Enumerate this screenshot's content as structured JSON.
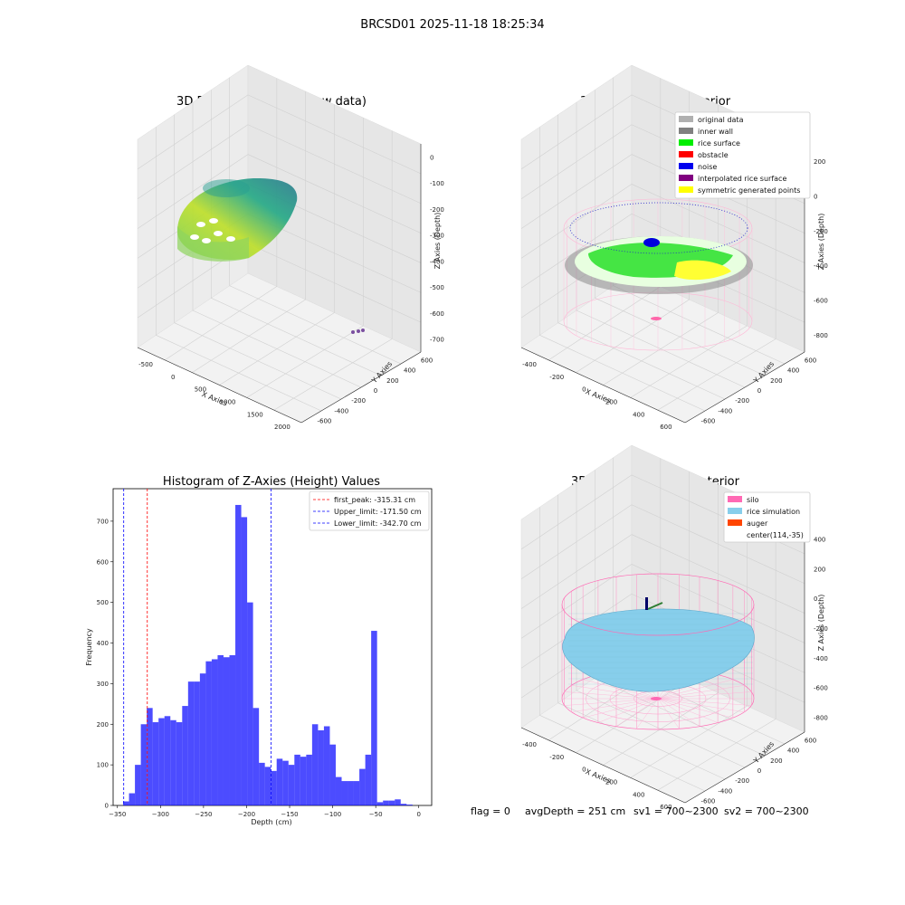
{
  "figure": {
    "suptitle": "BRCSD01 2025-11-18 18:25:34",
    "footer": {
      "flag": "flag = 0",
      "avg_depth": "avgDepth = 251 cm",
      "sv1": "sv1 = 700~2300",
      "sv2": "sv2 = 700~2300"
    }
  },
  "chart_data": [
    {
      "type": "scatter3d",
      "title": "3D Plot of Silo Interior(row data)",
      "xlabel": "X Axies",
      "ylabel": "Y Axies",
      "zlabel": "Z Axies (Depth)",
      "x_ticks": [
        "-500",
        "0",
        "500",
        "1000",
        "1500",
        "2000"
      ],
      "y_ticks": [
        "600",
        "400",
        "200",
        "0",
        "-200",
        "-400",
        "-600"
      ],
      "z_ticks": [
        "0",
        "-100",
        "-200",
        "-300",
        "-400",
        "-500",
        "-600",
        "-700"
      ],
      "xlim": [
        -650,
        2050
      ],
      "ylim": [
        -650,
        650
      ],
      "zlim": [
        -720,
        0
      ],
      "colormap": "viridis",
      "grid": true
    },
    {
      "type": "scatter3d",
      "title": "3D classify of Silo Interior",
      "xlabel": "X Axies",
      "ylabel": "Y Axies",
      "zlabel": "Z Axies (Depth)",
      "x_ticks": [
        "-400",
        "-200",
        "0",
        "200",
        "400",
        "600"
      ],
      "y_ticks": [
        "600",
        "400",
        "200",
        "0",
        "-200",
        "-400",
        "-600"
      ],
      "z_ticks": [
        "200",
        "0",
        "-200",
        "-400",
        "-600",
        "-800"
      ],
      "legend": [
        {
          "label": "original data",
          "color": "#b0b0b0"
        },
        {
          "label": "inner wall",
          "color": "#808080"
        },
        {
          "label": "rice surface",
          "color": "#00ee00"
        },
        {
          "label": "obstacle",
          "color": "#ff0000"
        },
        {
          "label": "noise",
          "color": "#0000ee"
        },
        {
          "label": "interpolated rice surface",
          "color": "#800080"
        },
        {
          "label": "symmetric generated points",
          "color": "#ffff00"
        }
      ],
      "legend_position": "top-right",
      "grid": true
    },
    {
      "type": "bar",
      "title": "Histogram of Z-Axies (Height) Values",
      "xlabel": "Depth (cm)",
      "ylabel": "Frequency",
      "xlim": [
        -355,
        15
      ],
      "ylim": [
        0,
        780
      ],
      "x_ticks": [
        -350,
        -300,
        -250,
        -200,
        -150,
        -100,
        -50,
        0
      ],
      "y_ticks": [
        0,
        100,
        200,
        300,
        400,
        500,
        600,
        700
      ],
      "bin_width": 6.86,
      "bin_start": -343.4,
      "values": [
        10,
        30,
        100,
        200,
        240,
        205,
        215,
        220,
        210,
        205,
        245,
        305,
        305,
        325,
        355,
        360,
        370,
        365,
        370,
        740,
        710,
        500,
        240,
        105,
        95,
        85,
        115,
        110,
        100,
        125,
        120,
        125,
        200,
        185,
        195,
        150,
        70,
        60,
        60,
        60,
        90,
        125,
        430,
        8,
        12,
        12,
        15,
        4,
        2
      ],
      "bar_color": "#0000ff",
      "vlines": [
        {
          "label": "first_peak: -315.31 cm",
          "x": -315.31,
          "color": "#ff0000"
        },
        {
          "label": "Upper_limit: -171.50 cm",
          "x": -171.5,
          "color": "#0000ff"
        },
        {
          "label": "Lower_limit: -342.70 cm",
          "x": -342.7,
          "color": "#0000ff"
        }
      ],
      "legend_position": "top-right",
      "grid": false
    },
    {
      "type": "surface3d",
      "title": "3D simulation of Silo Interior",
      "xlabel": "X Axies",
      "ylabel": "Y Axies",
      "zlabel": "Z Axies (Depth)",
      "x_ticks": [
        "-400",
        "-200",
        "0",
        "200",
        "400",
        "600"
      ],
      "y_ticks": [
        "600",
        "400",
        "200",
        "0",
        "-200",
        "-400",
        "-600"
      ],
      "z_ticks": [
        "400",
        "200",
        "0",
        "-200",
        "-400",
        "-600",
        "-800"
      ],
      "legend": [
        {
          "label": "silo",
          "color": "#ff69b4"
        },
        {
          "label": "rice simulation",
          "color": "#87ceeb"
        },
        {
          "label": "auger",
          "color": "#ff4500"
        },
        {
          "label": "center(114,-35)",
          "color": ""
        }
      ],
      "legend_position": "top-right",
      "grid": true
    }
  ]
}
